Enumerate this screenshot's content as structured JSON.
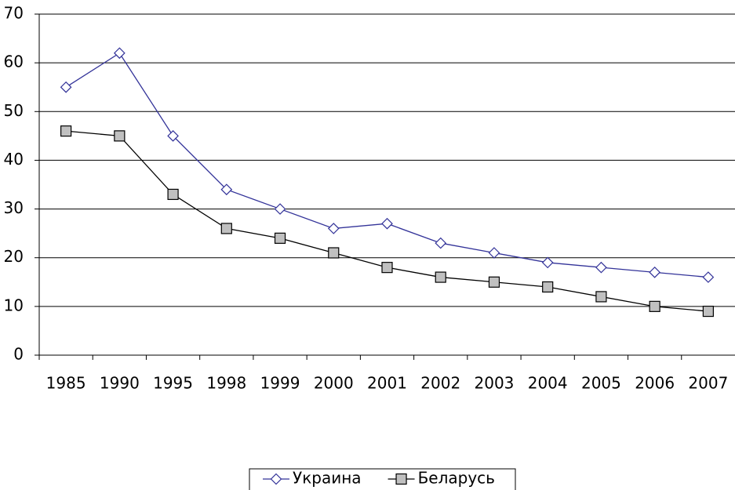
{
  "chart_data": {
    "type": "line",
    "categories": [
      "1985",
      "1990",
      "1995",
      "1998",
      "1999",
      "2000",
      "2001",
      "2002",
      "2003",
      "2004",
      "2005",
      "2006",
      "2007"
    ],
    "series": [
      {
        "name": "Украина",
        "color": "#333399",
        "marker": "diamond",
        "marker_fill": "#ffffff",
        "values": [
          55,
          62,
          45,
          34,
          30,
          26,
          27,
          23,
          21,
          19,
          18,
          17,
          16
        ]
      },
      {
        "name": "Беларусь",
        "color": "#000000",
        "marker": "square",
        "marker_fill": "#c0c0c0",
        "values": [
          46,
          45,
          33,
          26,
          24,
          21,
          18,
          16,
          15,
          14,
          12,
          10,
          9
        ]
      }
    ],
    "ylim": [
      0,
      70
    ],
    "yticks": [
      0,
      10,
      20,
      30,
      40,
      50,
      60,
      70
    ],
    "grid": true,
    "legend": "bottom"
  }
}
